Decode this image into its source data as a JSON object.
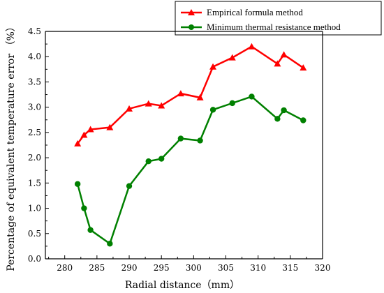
{
  "chart_data": {
    "type": "line",
    "xlabel": "Radial distance（mm）",
    "ylabel": "Percentage of equivalent temperature error （%）",
    "xlim": [
      277,
      320
    ],
    "ylim": [
      0,
      4.5
    ],
    "x_ticks": [
      280,
      285,
      290,
      295,
      300,
      305,
      310,
      315,
      320
    ],
    "y_ticks": [
      0.0,
      0.5,
      1.0,
      1.5,
      2.0,
      2.5,
      3.0,
      3.5,
      4.0,
      4.5
    ],
    "y_tick_labels": [
      "0.0",
      "0.5",
      "1.0",
      "1.5",
      "2.0",
      "2.5",
      "3.0",
      "3.5",
      "4.0",
      "4.5"
    ],
    "grid": false,
    "legend_position": "top-right",
    "series": [
      {
        "name": "Empirical formula method",
        "color": "#ff0000",
        "marker": "triangle",
        "x": [
          282,
          283,
          284,
          287,
          290,
          293,
          295,
          298,
          301,
          303,
          306,
          309,
          313,
          314,
          317
        ],
        "y": [
          2.28,
          2.45,
          2.56,
          2.6,
          2.97,
          3.07,
          3.03,
          3.27,
          3.19,
          3.8,
          3.98,
          4.2,
          3.86,
          4.04,
          3.78
        ]
      },
      {
        "name": "Minimum thermal resistance method",
        "color": "#008000",
        "marker": "circle",
        "x": [
          282,
          283,
          284,
          287,
          290,
          293,
          295,
          298,
          301,
          303,
          306,
          309,
          313,
          314,
          317
        ],
        "y": [
          1.48,
          1.0,
          0.57,
          0.3,
          1.44,
          1.93,
          1.98,
          2.38,
          2.34,
          2.95,
          3.08,
          3.21,
          2.77,
          2.94,
          2.74
        ]
      }
    ]
  }
}
